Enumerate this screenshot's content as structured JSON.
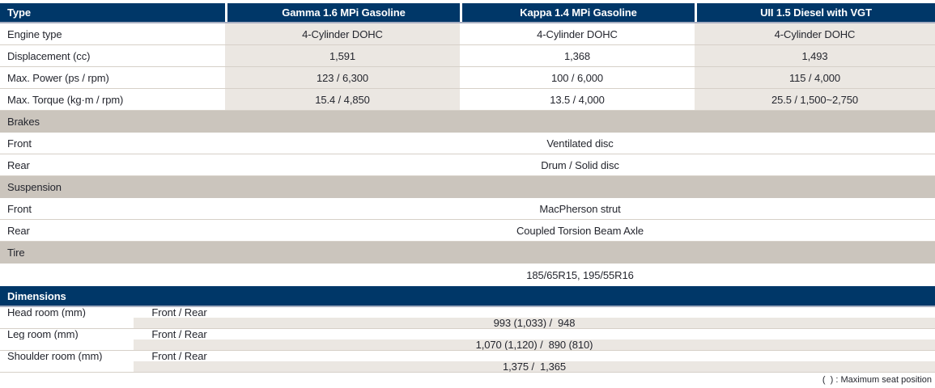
{
  "colors": {
    "header_navy": "#003768",
    "section_band": "#cbc5bd",
    "cell_shade": "#ebe7e2",
    "divider": "#d6d0c8",
    "header_underline": "#a8aec1",
    "text": "#24262e"
  },
  "table": {
    "header": {
      "type_label": "Type",
      "columns": [
        "Gamma 1.6 MPi Gasoline",
        "Kappa 1.4 MPi Gasoline",
        "UII 1.5 Diesel with VGT"
      ]
    },
    "engine_rows": [
      {
        "label": "Engine type",
        "values": [
          "4-Cylinder DOHC",
          "4-Cylinder DOHC",
          "4-Cylinder DOHC"
        ]
      },
      {
        "label": "Displacement (cc)",
        "values": [
          "1,591",
          "1,368",
          "1,493"
        ]
      },
      {
        "label": "Max. Power (ps / rpm)",
        "values": [
          "123 / 6,300",
          "100 / 6,000",
          "115 / 4,000"
        ]
      },
      {
        "label": "Max. Torque (kg·m / rpm)",
        "values": [
          "15.4 / 4,850",
          "13.5 / 4,000",
          "25.5 / 1,500~2,750"
        ]
      }
    ],
    "sections": [
      {
        "title": "Brakes",
        "rows": [
          {
            "label": "Front",
            "value": "Ventilated disc"
          },
          {
            "label": "Rear",
            "value": "Drum / Solid disc"
          }
        ]
      },
      {
        "title": "Suspension",
        "rows": [
          {
            "label": "Front",
            "value": "MacPherson strut"
          },
          {
            "label": "Rear",
            "value": "Coupled Torsion Beam Axle"
          }
        ]
      },
      {
        "title": "Tire",
        "rows": [
          {
            "label": "",
            "value": "185/65R15, 195/55R16"
          }
        ]
      }
    ],
    "dimensions": {
      "title": "Dimensions",
      "rows": [
        {
          "label": "Head room (mm)",
          "sublabel": "Front / Rear",
          "value": "993 (1,033) /  948"
        },
        {
          "label": "Leg room (mm)",
          "sublabel": "Front / Rear",
          "value": "1,070 (1,120) /  890 (810)"
        },
        {
          "label": "Shoulder room (mm)",
          "sublabel": "Front / Rear",
          "value": "1,375 /  1,365"
        }
      ]
    },
    "footnote": "(  ) : Maximum seat position"
  }
}
